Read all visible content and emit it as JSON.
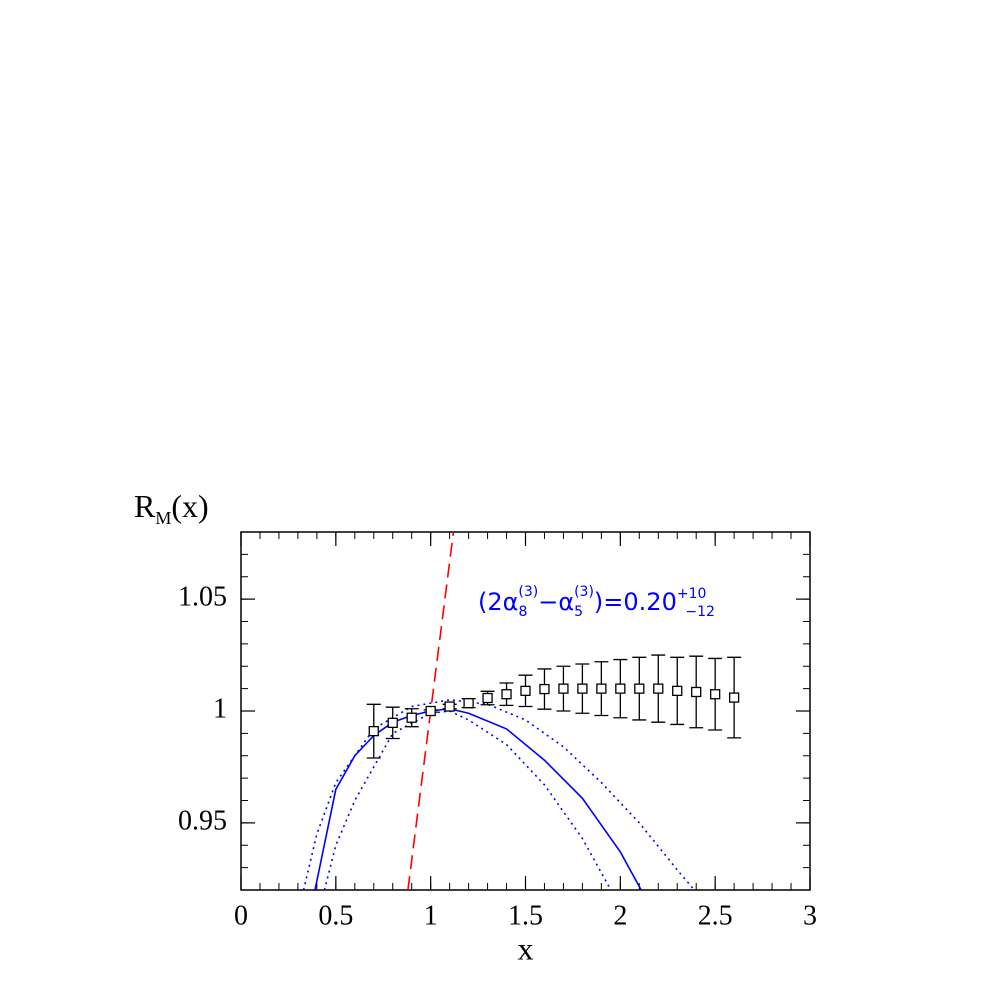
{
  "chart_data": {
    "type": "scatter",
    "xlabel": "x",
    "ylabel_parts": [
      "R",
      "M",
      "(x)"
    ],
    "annotation_parts": [
      "(2α",
      "8",
      "(3)",
      "−α",
      "5",
      "(3)",
      ")=0.20",
      "+10",
      "−12"
    ],
    "annotation_color": "#0000ff",
    "xlim": [
      0,
      3
    ],
    "ylim": [
      0.92,
      1.08
    ],
    "xticks": [
      0,
      0.5,
      1,
      1.5,
      2,
      2.5,
      3
    ],
    "yticks": [
      0.95,
      1,
      1.05
    ],
    "points": {
      "color": "#000000",
      "x": [
        0.7,
        0.8,
        0.9,
        1.0,
        1.1,
        1.2,
        1.3,
        1.4,
        1.5,
        1.6,
        1.7,
        1.8,
        1.9,
        2.0,
        2.1,
        2.2,
        2.3,
        2.4,
        2.5,
        2.6
      ],
      "values": [
        0.991,
        0.9947,
        0.997,
        1.0,
        1.002,
        1.0035,
        1.0058,
        1.0075,
        1.009,
        1.0098,
        1.01,
        1.01,
        1.01,
        1.01,
        1.01,
        1.01,
        1.009,
        1.0085,
        1.0075,
        1.006
      ],
      "errors": [
        0.012,
        0.007,
        0.004,
        0.0005,
        0.001,
        0.002,
        0.003,
        0.005,
        0.007,
        0.009,
        0.01,
        0.011,
        0.012,
        0.013,
        0.014,
        0.015,
        0.015,
        0.016,
        0.016,
        0.018
      ]
    },
    "curves": [
      {
        "color": "#ff0000",
        "style": "dashed",
        "x": [
          0.88,
          1.12
        ],
        "values": [
          0.92,
          1.08
        ]
      },
      {
        "color": "#0000ff",
        "style": "solid",
        "x": [
          0.39,
          0.5,
          0.6,
          0.7,
          0.8,
          0.9,
          1.0,
          1.1,
          1.2,
          1.4,
          1.6,
          1.8,
          2.0,
          2.11
        ],
        "values": [
          0.92,
          0.965,
          0.98,
          0.989,
          0.995,
          0.998,
          1.0,
          1.001,
          0.999,
          0.992,
          0.978,
          0.961,
          0.937,
          0.92
        ]
      },
      {
        "color": "#0000ff",
        "style": "dotted",
        "x": [
          0.33,
          0.4,
          0.5,
          0.7,
          0.9,
          1.1,
          1.3,
          1.5,
          1.7,
          1.9,
          2.1,
          2.3,
          2.39
        ],
        "values": [
          0.92,
          0.945,
          0.968,
          0.992,
          1.002,
          1.005,
          1.003,
          0.996,
          0.984,
          0.968,
          0.95,
          0.929,
          0.92
        ]
      },
      {
        "color": "#0000ff",
        "style": "dotted",
        "x": [
          0.44,
          0.5,
          0.6,
          0.8,
          1.0,
          1.1,
          1.2,
          1.4,
          1.6,
          1.8,
          1.95
        ],
        "values": [
          0.92,
          0.94,
          0.96,
          0.99,
          0.999,
          1.0,
          0.996,
          0.985,
          0.967,
          0.943,
          0.92
        ]
      }
    ]
  }
}
